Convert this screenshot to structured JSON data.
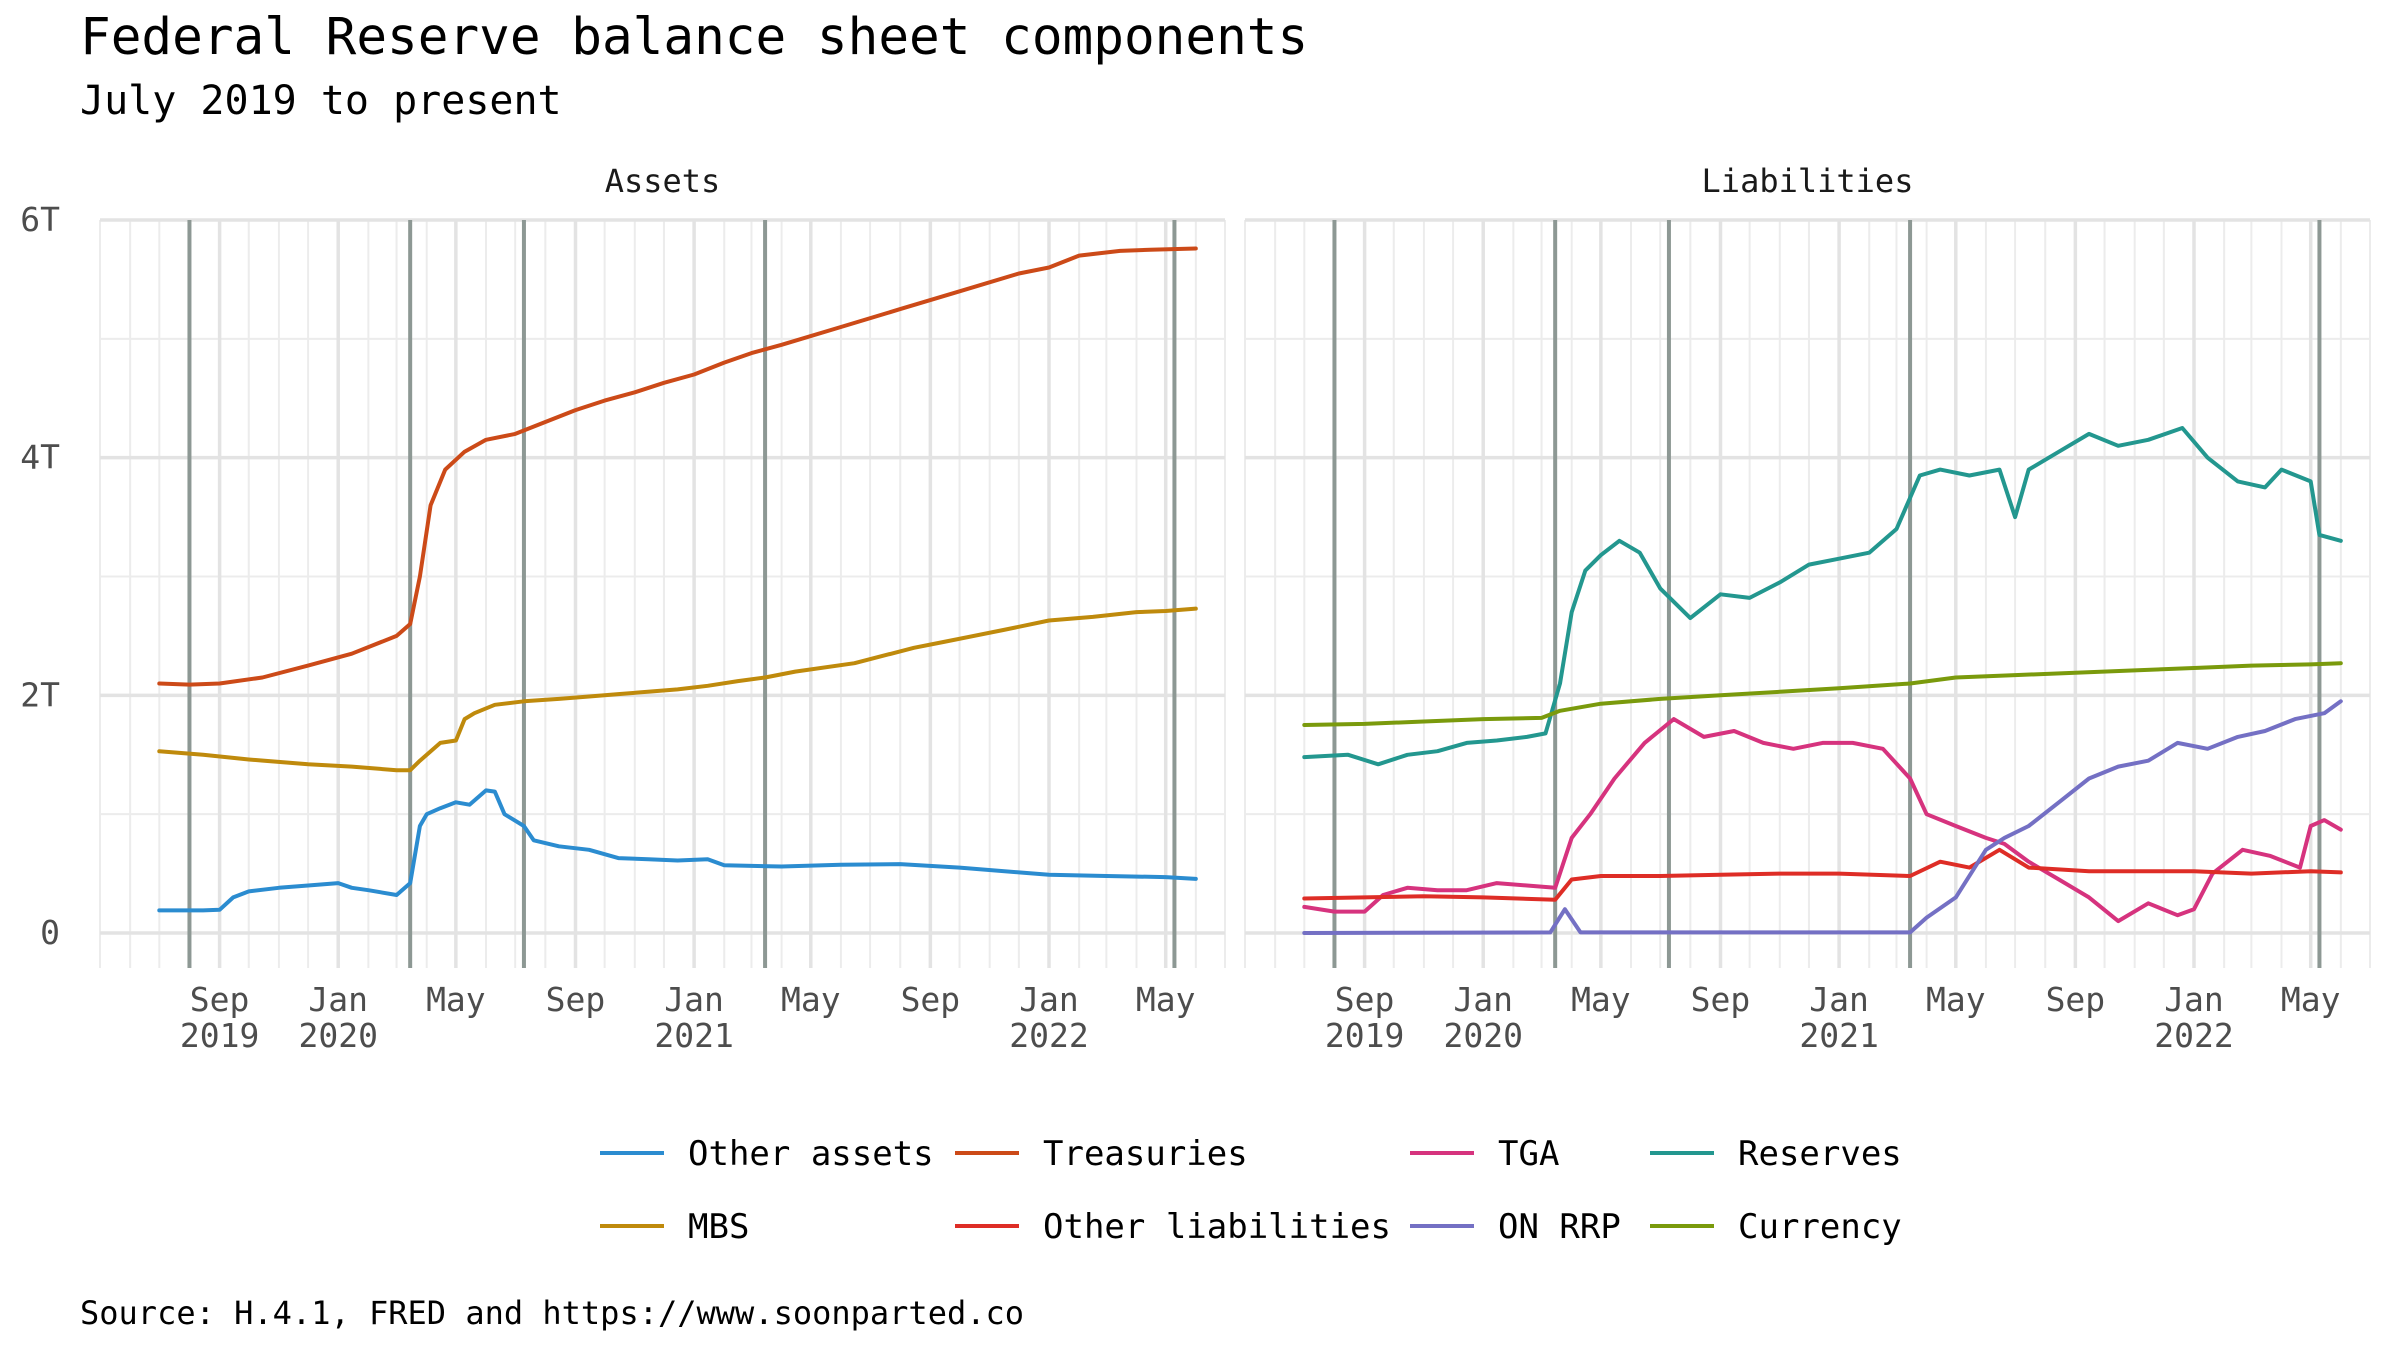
{
  "title": "Federal Reserve balance sheet components",
  "subtitle": "July 2019 to present",
  "caption": "Source: H.4.1, FRED and https://www.soonparted.co",
  "chart_data": {
    "type": "line",
    "facets": [
      "Assets",
      "Liabilities"
    ],
    "x_range": [
      "2019-05-01",
      "2022-07-01"
    ],
    "y_range": [
      0,
      6000
    ],
    "y_ticks": [
      {
        "value": 0,
        "label": "0"
      },
      {
        "value": 2000,
        "label": "2T"
      },
      {
        "value": 4000,
        "label": "4T"
      },
      {
        "value": 6000,
        "label": "6T"
      }
    ],
    "x_ticks": [
      {
        "date": "2019-09-01",
        "label": [
          "Sep",
          "2019"
        ]
      },
      {
        "date": "2020-01-01",
        "label": [
          "Jan",
          "2020"
        ]
      },
      {
        "date": "2020-05-01",
        "label": [
          "May"
        ]
      },
      {
        "date": "2020-09-01",
        "label": [
          "Sep"
        ]
      },
      {
        "date": "2021-01-01",
        "label": [
          "Jan",
          "2021"
        ]
      },
      {
        "date": "2021-05-01",
        "label": [
          "May"
        ]
      },
      {
        "date": "2021-09-01",
        "label": [
          "Sep"
        ]
      },
      {
        "date": "2022-01-01",
        "label": [
          "Jan",
          "2022"
        ]
      },
      {
        "date": "2022-05-01",
        "label": [
          "May"
        ]
      }
    ],
    "event_lines": [
      "2019-08-01",
      "2020-03-15",
      "2020-07-10",
      "2021-03-15",
      "2022-05-10"
    ],
    "grid": true,
    "legend_position": "bottom",
    "series": [
      {
        "name": "Other assets",
        "facet": "Assets",
        "color": "#2b8cd0",
        "points": [
          [
            "2019-07-01",
            190
          ],
          [
            "2019-08-15",
            190
          ],
          [
            "2019-09-01",
            195
          ],
          [
            "2019-09-15",
            300
          ],
          [
            "2019-10-01",
            350
          ],
          [
            "2019-11-01",
            380
          ],
          [
            "2019-12-01",
            400
          ],
          [
            "2020-01-01",
            420
          ],
          [
            "2020-01-15",
            380
          ],
          [
            "2020-02-01",
            360
          ],
          [
            "2020-03-01",
            320
          ],
          [
            "2020-03-15",
            420
          ],
          [
            "2020-03-25",
            900
          ],
          [
            "2020-04-01",
            1000
          ],
          [
            "2020-04-15",
            1050
          ],
          [
            "2020-05-01",
            1100
          ],
          [
            "2020-05-15",
            1080
          ],
          [
            "2020-06-01",
            1200
          ],
          [
            "2020-06-10",
            1190
          ],
          [
            "2020-06-20",
            1000
          ],
          [
            "2020-07-10",
            900
          ],
          [
            "2020-07-20",
            780
          ],
          [
            "2020-08-15",
            730
          ],
          [
            "2020-09-15",
            700
          ],
          [
            "2020-10-15",
            630
          ],
          [
            "2020-11-15",
            620
          ],
          [
            "2020-12-15",
            610
          ],
          [
            "2021-01-15",
            620
          ],
          [
            "2021-02-01",
            570
          ],
          [
            "2021-04-01",
            560
          ],
          [
            "2021-06-01",
            575
          ],
          [
            "2021-08-01",
            580
          ],
          [
            "2021-10-01",
            550
          ],
          [
            "2021-12-01",
            510
          ],
          [
            "2022-01-01",
            490
          ],
          [
            "2022-03-01",
            480
          ],
          [
            "2022-05-01",
            470
          ],
          [
            "2022-06-01",
            455
          ]
        ]
      },
      {
        "name": "Treasuries",
        "facet": "Assets",
        "color": "#cc4a18",
        "points": [
          [
            "2019-07-01",
            2100
          ],
          [
            "2019-08-01",
            2090
          ],
          [
            "2019-09-01",
            2100
          ],
          [
            "2019-10-15",
            2150
          ],
          [
            "2019-12-01",
            2250
          ],
          [
            "2020-01-15",
            2350
          ],
          [
            "2020-03-01",
            2500
          ],
          [
            "2020-03-15",
            2600
          ],
          [
            "2020-03-25",
            3000
          ],
          [
            "2020-04-05",
            3600
          ],
          [
            "2020-04-20",
            3900
          ],
          [
            "2020-05-10",
            4050
          ],
          [
            "2020-06-01",
            4150
          ],
          [
            "2020-07-01",
            4200
          ],
          [
            "2020-08-01",
            4300
          ],
          [
            "2020-09-01",
            4400
          ],
          [
            "2020-10-01",
            4480
          ],
          [
            "2020-11-01",
            4550
          ],
          [
            "2020-12-01",
            4630
          ],
          [
            "2021-01-01",
            4700
          ],
          [
            "2021-02-01",
            4800
          ],
          [
            "2021-03-01",
            4880
          ],
          [
            "2021-04-01",
            4950
          ],
          [
            "2021-06-01",
            5100
          ],
          [
            "2021-08-01",
            5250
          ],
          [
            "2021-10-01",
            5400
          ],
          [
            "2021-12-01",
            5550
          ],
          [
            "2022-01-01",
            5600
          ],
          [
            "2022-02-01",
            5700
          ],
          [
            "2022-03-15",
            5740
          ],
          [
            "2022-04-15",
            5750
          ],
          [
            "2022-06-01",
            5760
          ]
        ]
      },
      {
        "name": "MBS",
        "facet": "Assets",
        "color": "#bf8a0c",
        "points": [
          [
            "2019-07-01",
            1530
          ],
          [
            "2019-08-15",
            1500
          ],
          [
            "2019-10-01",
            1460
          ],
          [
            "2019-12-01",
            1420
          ],
          [
            "2020-01-15",
            1400
          ],
          [
            "2020-03-01",
            1370
          ],
          [
            "2020-03-15",
            1370
          ],
          [
            "2020-03-25",
            1450
          ],
          [
            "2020-04-15",
            1600
          ],
          [
            "2020-05-01",
            1620
          ],
          [
            "2020-05-10",
            1800
          ],
          [
            "2020-05-20",
            1850
          ],
          [
            "2020-06-10",
            1920
          ],
          [
            "2020-07-10",
            1950
          ],
          [
            "2020-08-15",
            1970
          ],
          [
            "2020-09-15",
            1990
          ],
          [
            "2020-10-15",
            2010
          ],
          [
            "2020-12-15",
            2050
          ],
          [
            "2021-01-15",
            2080
          ],
          [
            "2021-02-15",
            2120
          ],
          [
            "2021-03-15",
            2150
          ],
          [
            "2021-04-15",
            2200
          ],
          [
            "2021-06-15",
            2270
          ],
          [
            "2021-08-15",
            2400
          ],
          [
            "2021-09-15",
            2450
          ],
          [
            "2021-11-15",
            2550
          ],
          [
            "2022-01-01",
            2630
          ],
          [
            "2022-02-15",
            2660
          ],
          [
            "2022-04-01",
            2700
          ],
          [
            "2022-05-01",
            2710
          ],
          [
            "2022-06-01",
            2730
          ]
        ]
      },
      {
        "name": "Reserves",
        "facet": "Liabilities",
        "color": "#23978f",
        "points": [
          [
            "2019-07-01",
            1480
          ],
          [
            "2019-08-15",
            1500
          ],
          [
            "2019-09-15",
            1420
          ],
          [
            "2019-10-15",
            1500
          ],
          [
            "2019-11-15",
            1530
          ],
          [
            "2019-12-15",
            1600
          ],
          [
            "2020-01-15",
            1620
          ],
          [
            "2020-02-15",
            1650
          ],
          [
            "2020-03-05",
            1680
          ],
          [
            "2020-03-20",
            2100
          ],
          [
            "2020-04-01",
            2700
          ],
          [
            "2020-04-15",
            3050
          ],
          [
            "2020-05-01",
            3180
          ],
          [
            "2020-05-20",
            3300
          ],
          [
            "2020-06-10",
            3200
          ],
          [
            "2020-07-01",
            2900
          ],
          [
            "2020-08-01",
            2650
          ],
          [
            "2020-09-01",
            2850
          ],
          [
            "2020-10-01",
            2820
          ],
          [
            "2020-11-01",
            2950
          ],
          [
            "2020-12-01",
            3100
          ],
          [
            "2021-01-01",
            3150
          ],
          [
            "2021-02-01",
            3200
          ],
          [
            "2021-03-01",
            3400
          ],
          [
            "2021-03-25",
            3850
          ],
          [
            "2021-04-15",
            3900
          ],
          [
            "2021-05-15",
            3850
          ],
          [
            "2021-06-15",
            3900
          ],
          [
            "2021-07-01",
            3500
          ],
          [
            "2021-07-15",
            3900
          ],
          [
            "2021-08-15",
            4050
          ],
          [
            "2021-09-15",
            4200
          ],
          [
            "2021-10-15",
            4100
          ],
          [
            "2021-11-15",
            4150
          ],
          [
            "2021-12-20",
            4250
          ],
          [
            "2022-01-15",
            4000
          ],
          [
            "2022-02-15",
            3800
          ],
          [
            "2022-03-15",
            3750
          ],
          [
            "2022-04-01",
            3900
          ],
          [
            "2022-05-01",
            3800
          ],
          [
            "2022-05-10",
            3350
          ],
          [
            "2022-06-01",
            3300
          ]
        ]
      },
      {
        "name": "Currency",
        "facet": "Liabilities",
        "color": "#7a9a0c",
        "points": [
          [
            "2019-07-01",
            1750
          ],
          [
            "2019-09-01",
            1760
          ],
          [
            "2019-11-01",
            1780
          ],
          [
            "2020-01-01",
            1800
          ],
          [
            "2020-03-01",
            1810
          ],
          [
            "2020-03-20",
            1870
          ],
          [
            "2020-05-01",
            1930
          ],
          [
            "2020-07-01",
            1970
          ],
          [
            "2020-09-01",
            2000
          ],
          [
            "2020-11-01",
            2030
          ],
          [
            "2021-01-01",
            2060
          ],
          [
            "2021-03-15",
            2100
          ],
          [
            "2021-05-01",
            2150
          ],
          [
            "2021-07-01",
            2170
          ],
          [
            "2021-09-01",
            2190
          ],
          [
            "2021-11-01",
            2210
          ],
          [
            "2022-01-01",
            2230
          ],
          [
            "2022-03-01",
            2250
          ],
          [
            "2022-05-01",
            2260
          ],
          [
            "2022-06-01",
            2270
          ]
        ]
      },
      {
        "name": "TGA",
        "facet": "Liabilities",
        "color": "#d6337e",
        "points": [
          [
            "2019-07-01",
            220
          ],
          [
            "2019-08-01",
            180
          ],
          [
            "2019-09-01",
            180
          ],
          [
            "2019-09-20",
            320
          ],
          [
            "2019-10-15",
            380
          ],
          [
            "2019-11-15",
            360
          ],
          [
            "2019-12-15",
            360
          ],
          [
            "2020-01-15",
            420
          ],
          [
            "2020-02-15",
            400
          ],
          [
            "2020-03-15",
            380
          ],
          [
            "2020-04-01",
            800
          ],
          [
            "2020-04-20",
            1000
          ],
          [
            "2020-05-15",
            1300
          ],
          [
            "2020-06-15",
            1600
          ],
          [
            "2020-07-15",
            1800
          ],
          [
            "2020-08-15",
            1650
          ],
          [
            "2020-09-15",
            1700
          ],
          [
            "2020-10-15",
            1600
          ],
          [
            "2020-11-15",
            1550
          ],
          [
            "2020-12-15",
            1600
          ],
          [
            "2021-01-15",
            1600
          ],
          [
            "2021-02-15",
            1550
          ],
          [
            "2021-03-15",
            1300
          ],
          [
            "2021-04-01",
            1000
          ],
          [
            "2021-05-01",
            900
          ],
          [
            "2021-06-01",
            800
          ],
          [
            "2021-06-20",
            750
          ],
          [
            "2021-07-15",
            600
          ],
          [
            "2021-08-15",
            450
          ],
          [
            "2021-09-15",
            300
          ],
          [
            "2021-10-15",
            100
          ],
          [
            "2021-11-15",
            250
          ],
          [
            "2021-12-15",
            150
          ],
          [
            "2022-01-01",
            200
          ],
          [
            "2022-01-20",
            500
          ],
          [
            "2022-02-20",
            700
          ],
          [
            "2022-03-20",
            650
          ],
          [
            "2022-04-20",
            550
          ],
          [
            "2022-05-01",
            900
          ],
          [
            "2022-05-15",
            950
          ],
          [
            "2022-06-01",
            870
          ]
        ]
      },
      {
        "name": "Other liabilities",
        "facet": "Liabilities",
        "color": "#de2d26",
        "points": [
          [
            "2019-07-01",
            290
          ],
          [
            "2019-09-01",
            300
          ],
          [
            "2019-11-01",
            310
          ],
          [
            "2020-01-01",
            300
          ],
          [
            "2020-03-15",
            280
          ],
          [
            "2020-04-01",
            450
          ],
          [
            "2020-05-01",
            480
          ],
          [
            "2020-07-01",
            480
          ],
          [
            "2020-09-01",
            490
          ],
          [
            "2020-11-01",
            500
          ],
          [
            "2021-01-01",
            500
          ],
          [
            "2021-03-15",
            480
          ],
          [
            "2021-04-15",
            600
          ],
          [
            "2021-05-15",
            550
          ],
          [
            "2021-06-15",
            700
          ],
          [
            "2021-07-15",
            550
          ],
          [
            "2021-09-15",
            520
          ],
          [
            "2021-11-15",
            520
          ],
          [
            "2022-01-01",
            520
          ],
          [
            "2022-03-01",
            500
          ],
          [
            "2022-05-01",
            520
          ],
          [
            "2022-06-01",
            510
          ]
        ]
      },
      {
        "name": "ON RRP",
        "facet": "Liabilities",
        "color": "#7470c4",
        "points": [
          [
            "2019-07-01",
            0
          ],
          [
            "2020-03-10",
            5
          ],
          [
            "2020-03-25",
            200
          ],
          [
            "2020-04-10",
            5
          ],
          [
            "2021-03-15",
            5
          ],
          [
            "2021-04-01",
            130
          ],
          [
            "2021-05-01",
            300
          ],
          [
            "2021-06-01",
            700
          ],
          [
            "2021-06-20",
            800
          ],
          [
            "2021-07-15",
            900
          ],
          [
            "2021-08-15",
            1100
          ],
          [
            "2021-09-15",
            1300
          ],
          [
            "2021-10-15",
            1400
          ],
          [
            "2021-11-15",
            1450
          ],
          [
            "2021-12-15",
            1600
          ],
          [
            "2022-01-15",
            1550
          ],
          [
            "2022-02-15",
            1650
          ],
          [
            "2022-03-15",
            1700
          ],
          [
            "2022-04-15",
            1800
          ],
          [
            "2022-05-15",
            1850
          ],
          [
            "2022-06-01",
            1950
          ]
        ]
      }
    ],
    "legend": [
      "Other assets",
      "Treasuries",
      "TGA",
      "Reserves",
      "MBS",
      "Other liabilities",
      "ON RRP",
      "Currency"
    ]
  }
}
